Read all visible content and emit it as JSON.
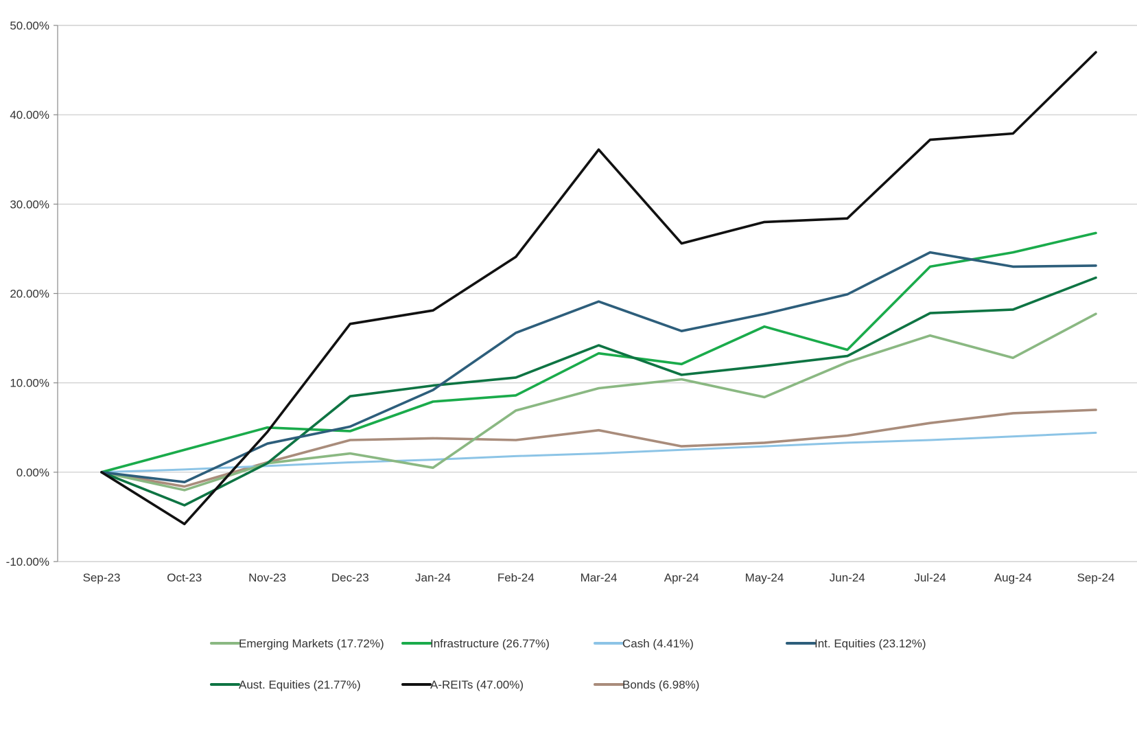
{
  "chart_data": {
    "type": "line",
    "title": "",
    "xlabel": "",
    "ylabel": "",
    "categories": [
      "Sep-23",
      "Oct-23",
      "Nov-23",
      "Dec-23",
      "Jan-24",
      "Feb-24",
      "Mar-24",
      "Apr-24",
      "May-24",
      "Jun-24",
      "Jul-24",
      "Aug-24",
      "Sep-24"
    ],
    "ylim": [
      -10,
      50
    ],
    "yticks": [
      -10,
      0,
      10,
      20,
      30,
      40,
      50
    ],
    "ytick_labels": [
      "-10.00%",
      "0.00%",
      "10.00%",
      "20.00%",
      "30.00%",
      "40.00%",
      "50.00%"
    ],
    "grid": true,
    "legend_position": "bottom",
    "series": [
      {
        "name": "Emerging Markets (17.72%)",
        "color": "#8ab882",
        "values": [
          0,
          -2.0,
          1.0,
          2.1,
          0.5,
          6.9,
          9.4,
          10.4,
          8.4,
          12.3,
          15.3,
          12.8,
          17.72
        ]
      },
      {
        "name": "Infrastructure (26.77%)",
        "color": "#1aab4b",
        "values": [
          0,
          2.5,
          5.0,
          4.6,
          7.9,
          8.6,
          13.3,
          12.1,
          16.3,
          13.7,
          23.0,
          24.6,
          26.77
        ]
      },
      {
        "name": "Cash (4.41%)",
        "color": "#8cc4e6",
        "values": [
          0,
          0.3,
          0.7,
          1.1,
          1.4,
          1.8,
          2.1,
          2.5,
          2.9,
          3.3,
          3.6,
          4.0,
          4.41
        ]
      },
      {
        "name": "Int. Equities (23.12%)",
        "color": "#2d5e7b",
        "values": [
          0,
          -1.1,
          3.2,
          5.1,
          9.2,
          15.6,
          19.1,
          15.8,
          17.7,
          19.9,
          24.6,
          23.0,
          23.12
        ]
      },
      {
        "name": "Aust. Equities (21.77%)",
        "color": "#0e7443",
        "values": [
          0,
          -3.7,
          1.0,
          8.5,
          9.7,
          10.6,
          14.2,
          10.9,
          11.9,
          13.0,
          17.8,
          18.2,
          21.77
        ]
      },
      {
        "name": "A-REITs (47.00%)",
        "color": "#111111",
        "values": [
          0,
          -5.8,
          4.5,
          16.6,
          18.1,
          24.1,
          36.1,
          25.6,
          28.0,
          28.4,
          37.2,
          37.9,
          47.0
        ]
      },
      {
        "name": "Bonds (6.98%)",
        "color": "#a98c7b",
        "values": [
          0,
          -1.6,
          1.1,
          3.6,
          3.8,
          3.6,
          4.7,
          2.9,
          3.3,
          4.1,
          5.5,
          6.6,
          6.98
        ]
      }
    ]
  }
}
